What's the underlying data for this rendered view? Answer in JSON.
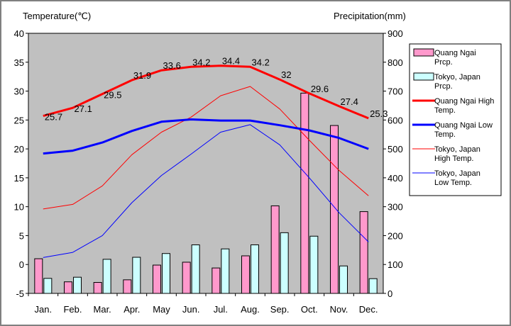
{
  "chart_data": {
    "type": "bar",
    "title": "",
    "ylabel_left": "Temperature(℃)",
    "ylabel_right": "Precipitation(mm)",
    "ylim_left": [
      -5,
      40
    ],
    "ylim_right": [
      0,
      900
    ],
    "yticks_left": [
      "40",
      "35",
      "30",
      "25",
      "20",
      "15",
      "10",
      "5",
      "0",
      "-5"
    ],
    "yticks_right": [
      "900",
      "800",
      "700",
      "600",
      "500",
      "400",
      "300",
      "200",
      "100",
      "0"
    ],
    "categories": [
      "Jan.",
      "Feb.",
      "Mar.",
      "Apr.",
      "May",
      "Jun.",
      "Jul.",
      "Aug.",
      "Sep.",
      "Oct.",
      "Nov.",
      "Dec."
    ],
    "grid": false,
    "legend_placement": "right",
    "bar_series": [
      {
        "name": "Quang Ngai Prcp.",
        "color": "#ff99cc",
        "values": [
          120,
          40,
          38,
          47,
          98,
          108,
          88,
          130,
          303,
          693,
          581,
          283
        ]
      },
      {
        "name": "Tokyo, Japan Prcp.",
        "color": "#ccffff",
        "values": [
          52,
          56,
          118,
          125,
          138,
          168,
          154,
          168,
          210,
          198,
          95,
          51
        ]
      }
    ],
    "line_series": [
      {
        "name": "Quang Ngai High Temp.",
        "color": "#ff0000",
        "width": 3,
        "values": [
          25.7,
          27.1,
          29.5,
          31.9,
          33.6,
          34.2,
          34.4,
          34.2,
          32,
          29.6,
          27.4,
          25.3
        ]
      },
      {
        "name": "Quang Ngai Low Temp.",
        "color": "#0000ff",
        "width": 3,
        "values": [
          19.2,
          19.7,
          21.1,
          23.1,
          24.7,
          25.1,
          24.9,
          24.9,
          24.1,
          23.2,
          21.9,
          20.0
        ]
      },
      {
        "name": "Tokyo, Japan High Temp.",
        "color": "#ff0000",
        "width": 1,
        "values": [
          9.6,
          10.4,
          13.6,
          19.0,
          22.9,
          25.5,
          29.2,
          30.8,
          26.9,
          21.5,
          16.3,
          11.9
        ]
      },
      {
        "name": "Tokyo, Japan Low Temp.",
        "color": "#0000ff",
        "width": 1,
        "values": [
          1.2,
          2.1,
          5.0,
          10.7,
          15.4,
          19.1,
          22.9,
          24.2,
          20.7,
          15.0,
          9.0,
          3.9
        ]
      }
    ],
    "data_labels_series": "Quang Ngai High Temp.",
    "data_labels": [
      "25.7",
      "27.1",
      "29.5",
      "31.9",
      "33.6",
      "34.2",
      "34.4",
      "34.2",
      "32",
      "29.6",
      "27.4",
      "25.3"
    ],
    "legend": [
      {
        "label_lines": [
          "Quang Ngai",
          "Prcp."
        ],
        "kind": "bar",
        "color": "#ff99cc"
      },
      {
        "label_lines": [
          "Tokyo, Japan",
          "Prcp."
        ],
        "kind": "bar",
        "color": "#ccffff"
      },
      {
        "label_lines": [
          "Quang Ngai High",
          "Temp."
        ],
        "kind": "line",
        "color": "#ff0000",
        "width": 3
      },
      {
        "label_lines": [
          "Quang Ngai Low",
          "Temp."
        ],
        "kind": "line",
        "color": "#0000ff",
        "width": 3
      },
      {
        "label_lines": [
          "Tokyo, Japan",
          "High Temp."
        ],
        "kind": "line",
        "color": "#ff0000",
        "width": 1
      },
      {
        "label_lines": [
          "Tokyo, Japan",
          "Low Temp."
        ],
        "kind": "line",
        "color": "#0000ff",
        "width": 1
      }
    ],
    "colors": {
      "plot_background": "#c0c0c0",
      "axis": "#000000"
    }
  }
}
